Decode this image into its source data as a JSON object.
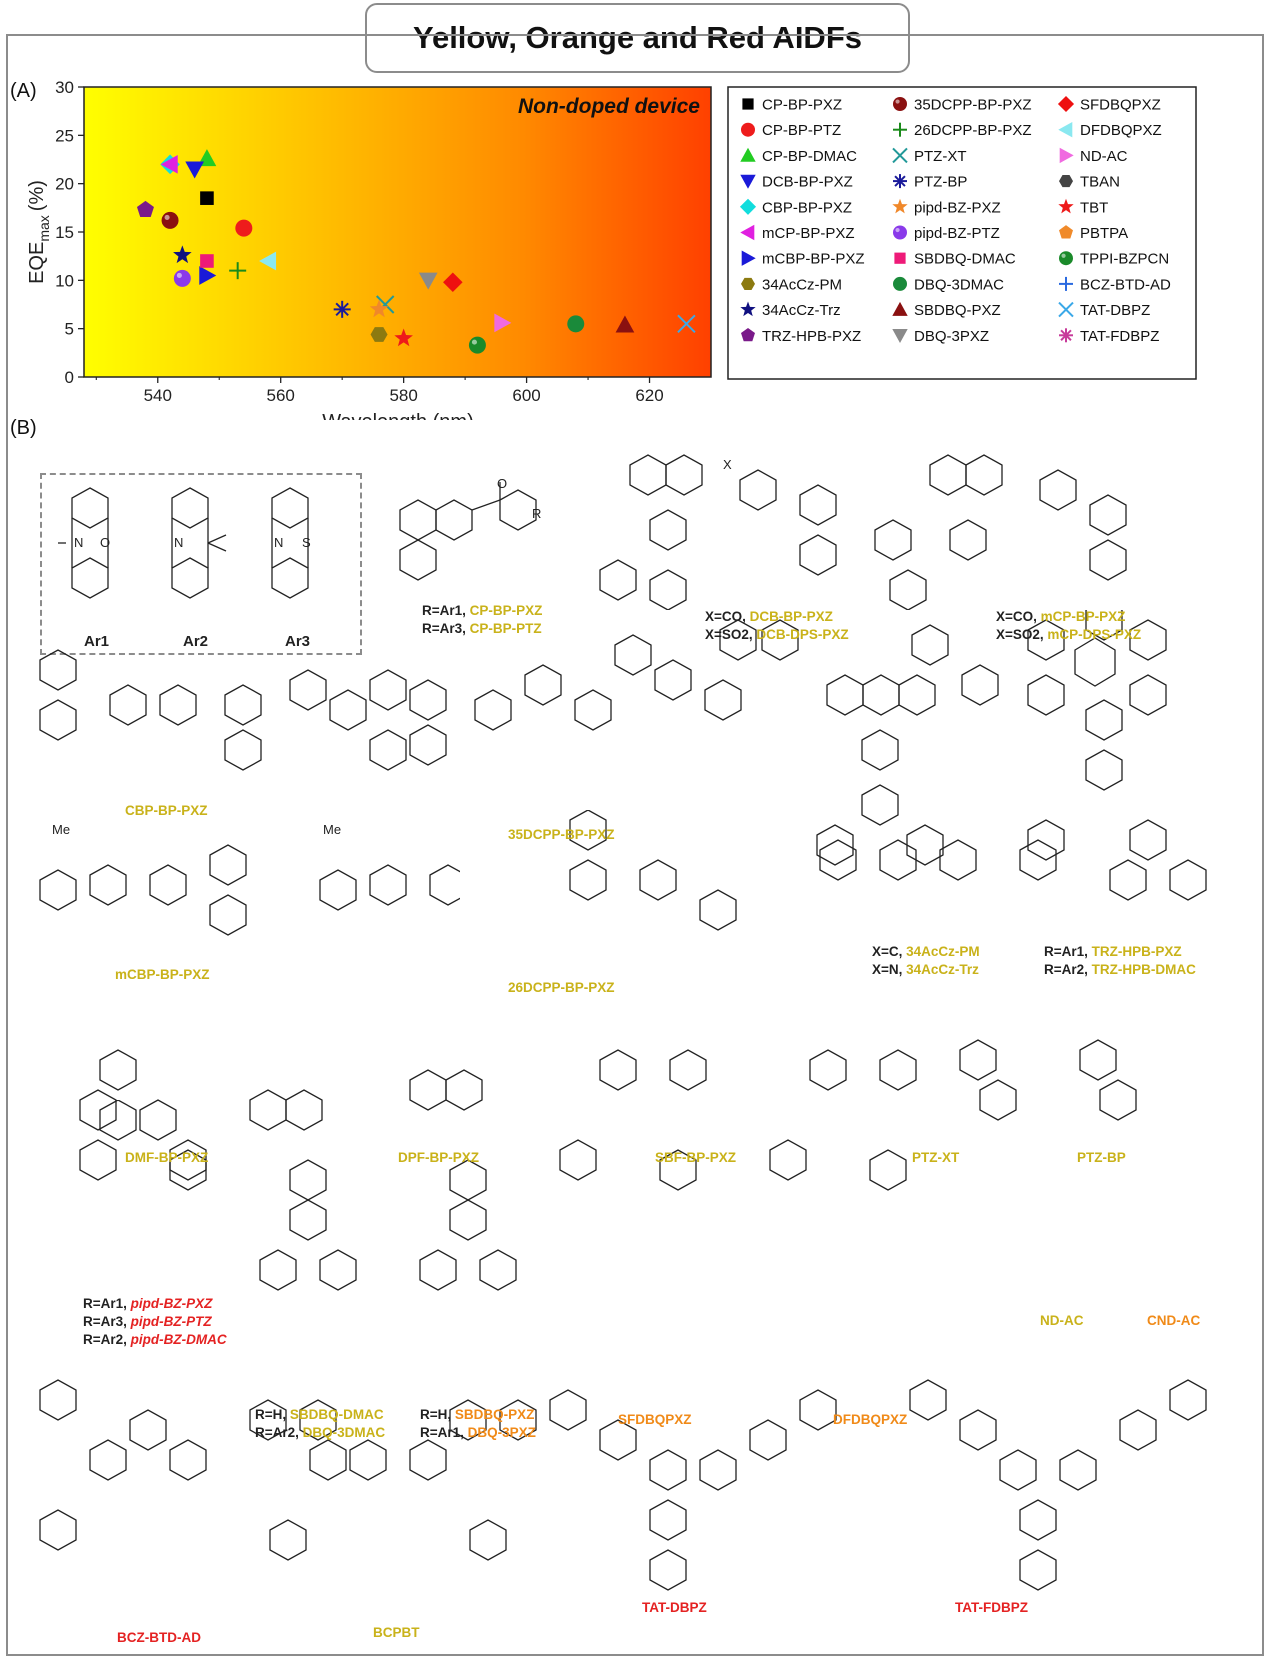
{
  "figure_title": "Yellow, Orange and Red AIDFs",
  "panel_a_label": "(A)",
  "panel_b_label": "(B)",
  "chart_data": {
    "type": "scatter",
    "annotation": "Non-doped device",
    "xlabel": "Wavelength (nm)",
    "ylabel": "EQE",
    "ylabel_sub": "max",
    "ylabel_unit": "(%)",
    "xlim": [
      528,
      630
    ],
    "ylim": [
      0,
      30
    ],
    "xticks": [
      540,
      560,
      580,
      600,
      620
    ],
    "yticks": [
      0,
      5,
      10,
      15,
      20,
      25,
      30
    ],
    "background_gradient": [
      "#ffff00",
      "#ffc000",
      "#ff8000",
      "#ff4000"
    ],
    "series": [
      {
        "name": "CP-BP-PXZ",
        "marker": "square",
        "color": "#000000",
        "x": 548,
        "y": 18.5
      },
      {
        "name": "CP-BP-PTZ",
        "marker": "circle",
        "color": "#ee1c1c",
        "x": 554,
        "y": 15.4
      },
      {
        "name": "CP-BP-DMAC",
        "marker": "triangle-up",
        "color": "#22cc22",
        "x": 548,
        "y": 22.6
      },
      {
        "name": "DCB-BP-PXZ",
        "marker": "triangle-down",
        "color": "#1a1ad8",
        "x": 546,
        "y": 21.5
      },
      {
        "name": "CBP-BP-PXZ",
        "marker": "diamond",
        "color": "#11dddd",
        "x": 542,
        "y": 22.0
      },
      {
        "name": "mCP-BP-PXZ",
        "marker": "triangle-left",
        "color": "#e020e0",
        "x": 542,
        "y": 22.0
      },
      {
        "name": "mCBP-BP-PXZ",
        "marker": "triangle-right",
        "color": "#1a1ad8",
        "x": 548,
        "y": 10.5
      },
      {
        "name": "34AcCz-PM",
        "marker": "hexagon",
        "color": "#8c7a10",
        "x": 576,
        "y": 4.4
      },
      {
        "name": "34AcCz-Trz",
        "marker": "star",
        "color": "#101080",
        "x": 544,
        "y": 12.6
      },
      {
        "name": "TRZ-HPB-PXZ",
        "marker": "pentagon",
        "color": "#7a1a8a",
        "x": 538,
        "y": 17.3
      },
      {
        "name": "35DCPP-BP-PXZ",
        "marker": "sphere",
        "color": "#8a1010",
        "x": 542,
        "y": 16.2
      },
      {
        "name": "26DCPP-BP-PXZ",
        "marker": "plus",
        "color": "#1a8a1a",
        "x": 553,
        "y": 11.0
      },
      {
        "name": "PTZ-XT",
        "marker": "x",
        "color": "#229999",
        "x": 577,
        "y": 7.5
      },
      {
        "name": "PTZ-BP",
        "marker": "asterisk",
        "color": "#1a1a9a",
        "x": 570,
        "y": 7.0
      },
      {
        "name": "pipd-BZ-PXZ",
        "marker": "star",
        "color": "#f0882a",
        "x": 576,
        "y": 7.0
      },
      {
        "name": "pipd-BZ-PTZ",
        "marker": "sphere",
        "color": "#8a3aea",
        "x": 544,
        "y": 10.2
      },
      {
        "name": "SBDBQ-DMAC",
        "marker": "square",
        "color": "#ee1a78",
        "x": 548,
        "y": 12.0
      },
      {
        "name": "DBQ-3DMAC",
        "marker": "circle",
        "color": "#1a8a3a",
        "x": 608,
        "y": 5.5
      },
      {
        "name": "SBDBQ-PXZ",
        "marker": "triangle-up",
        "color": "#8a1010",
        "x": 616,
        "y": 5.4
      },
      {
        "name": "DBQ-3PXZ",
        "marker": "triangle-down",
        "color": "#8a8a8a",
        "x": 584,
        "y": 10.0
      },
      {
        "name": "SFDBQPXZ",
        "marker": "diamond",
        "color": "#ee1010",
        "x": 588,
        "y": 9.8
      },
      {
        "name": "DFDBQPXZ",
        "marker": "triangle-left",
        "color": "#8ae8f0",
        "x": 558,
        "y": 12.0
      },
      {
        "name": "ND-AC",
        "marker": "triangle-right",
        "color": "#f06ae0",
        "x": 596,
        "y": 5.6
      },
      {
        "name": "TBAN",
        "marker": "hexagon",
        "color": "#444444",
        "x": null,
        "y": null
      },
      {
        "name": "TBT",
        "marker": "star",
        "color": "#ee1a1a",
        "x": 580,
        "y": 4.0
      },
      {
        "name": "PBTPA",
        "marker": "pentagon",
        "color": "#f08a2a",
        "x": null,
        "y": null
      },
      {
        "name": "TPPI-BZPCN",
        "marker": "sphere",
        "color": "#1a8a2a",
        "x": 592,
        "y": 3.3
      },
      {
        "name": "BCZ-BTD-AD",
        "marker": "plus",
        "color": "#2a6ae0",
        "x": null,
        "y": null
      },
      {
        "name": "TAT-DBPZ",
        "marker": "x",
        "color": "#3aa8e8",
        "x": 626,
        "y": 5.5
      },
      {
        "name": "TAT-FDBPZ",
        "marker": "asterisk",
        "color": "#c83a9a",
        "x": null,
        "y": null
      }
    ]
  },
  "panel_b": {
    "ar_labels": [
      "Ar1",
      "Ar2",
      "Ar3"
    ],
    "substituent_labels": {
      "r": "R",
      "x": "X"
    },
    "cp": {
      "l1": "R=Ar1, ",
      "n1": "CP-BP-PXZ",
      "l2": "R=Ar3, ",
      "n2": "CP-BP-PTZ"
    },
    "dcb": {
      "l1": "X=CO, ",
      "n1": "DCB-BP-PXZ",
      "l2": "X=SO2, ",
      "n2": "DCB-DPS-PXZ"
    },
    "mcp": {
      "l1": "X=CO, ",
      "n1": "mCP-BP-PXZ",
      "l2": "X=SO2, ",
      "n2": "mCP-DPS-PXZ"
    },
    "cbp": "CBP-BP-PXZ",
    "dcpp35": "35DCPP-BP-PXZ",
    "mcbp": "mCBP-BP-PXZ",
    "dcpp26": "26DCPP-BP-PXZ",
    "acz": {
      "l1": "X=C, ",
      "n1": "34AcCz-PM",
      "l2": "X=N, ",
      "n2": "34AcCz-Trz"
    },
    "trz": {
      "l1": "R=Ar1, ",
      "n1": "TRZ-HPB-PXZ",
      "l2": "R=Ar2, ",
      "n2": "TRZ-HPB-DMAC"
    },
    "dmf": "DMF-BP-PXZ",
    "dpf": "DPF-BP-PXZ",
    "sbf": "SBF-BP-PXZ",
    "ptzxt": "PTZ-XT",
    "ptzbp": "PTZ-BP",
    "me_label": "Me",
    "pipd": {
      "l1": "R=Ar1, ",
      "n1": "pipd-BZ-PXZ",
      "l2": "R=Ar3, ",
      "n2": "pipd-BZ-PTZ",
      "l3": "R=Ar2, ",
      "n3": "pipd-BZ-DMAC"
    },
    "sbdbq1": {
      "l1": "R=H, ",
      "n1": "SBDBQ-DMAC",
      "l2": "R=Ar2, ",
      "n2": "DBQ-3DMAC"
    },
    "sbdbq2": {
      "l1": "R=H, ",
      "n1": "SBDBQ-PXZ",
      "l2": "R=Ar1, ",
      "n2": "DBQ-3PXZ"
    },
    "sfdbq": "SFDBQPXZ",
    "dfdbq": "DFDBQPXZ",
    "ndac": "ND-AC",
    "cndac": "CND-AC",
    "bczbtd": "BCZ-BTD-AD",
    "bcpbt": "BCPBT",
    "tatdbpz": "TAT-DBPZ",
    "tatfdbpz": "TAT-FDBPZ"
  }
}
